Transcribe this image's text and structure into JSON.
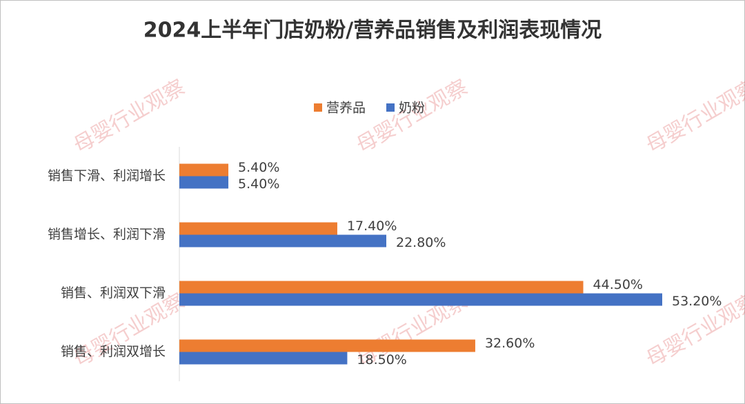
{
  "chart_data": {
    "type": "hbar",
    "title": "2024上半年门店奶粉/营养品销售及利润表现情况",
    "watermark": "母婴行业观察",
    "categories": [
      "销售下滑、利润增长",
      "销售增长、利润下滑",
      "销售、利润双下滑",
      "销售、利润双增长"
    ],
    "series": [
      {
        "name": "营养品",
        "color": "#ed7d31",
        "values": [
          5.4,
          17.4,
          44.5,
          32.6
        ],
        "value_labels": [
          "5.40%",
          "17.40%",
          "44.50%",
          "32.60%"
        ]
      },
      {
        "name": "奶粉",
        "color": "#4472c4",
        "values": [
          5.4,
          22.8,
          53.2,
          18.5
        ],
        "value_labels": [
          "5.40%",
          "22.80%",
          "53.20%",
          "18.50%"
        ]
      }
    ],
    "legend": "top"
  }
}
